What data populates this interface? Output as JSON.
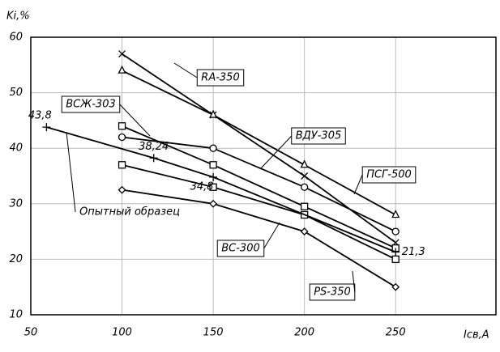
{
  "chart_data": {
    "type": "line",
    "y_label": "Ki,%",
    "x_label": "Iсв,A",
    "xlim": [
      50,
      305
    ],
    "ylim": [
      10,
      60
    ],
    "xticks": [
      50,
      100,
      150,
      200,
      250
    ],
    "yticks": [
      10,
      20,
      30,
      40,
      50,
      60
    ],
    "grid": true,
    "series": [
      {
        "name": "RA-350",
        "color": "#000000",
        "marker": "x",
        "x": [
          100,
          150,
          200,
          250
        ],
        "values": [
          57,
          46,
          35,
          23
        ]
      },
      {
        "name": "ПСГ-500",
        "color": "#000000",
        "marker": "triangle",
        "x": [
          100,
          150,
          200,
          250
        ],
        "values": [
          54,
          46,
          37,
          28
        ]
      },
      {
        "name": "ВСЖ-303",
        "color": "#000000",
        "marker": "square",
        "x": [
          100,
          150,
          200,
          250
        ],
        "values": [
          44,
          37,
          29.5,
          22
        ]
      },
      {
        "name": "ВДУ-305",
        "color": "#000000",
        "marker": "circle",
        "x": [
          100,
          150,
          200,
          250
        ],
        "values": [
          42,
          40,
          33,
          25
        ]
      },
      {
        "name": "ВС-300",
        "color": "#000000",
        "marker": "square",
        "x": [
          100,
          150,
          200,
          250
        ],
        "values": [
          37,
          33,
          28,
          20
        ]
      },
      {
        "name": "PS-350",
        "color": "#000000",
        "marker": "diamond",
        "x": [
          100,
          150,
          200,
          250
        ],
        "values": [
          32.5,
          30,
          25,
          15
        ]
      },
      {
        "name": "Опытный образец",
        "color": "#000000",
        "marker": "plus",
        "x": [
          58.6,
          117.4,
          150,
          250
        ],
        "values": [
          43.8,
          38.24,
          34.8,
          21.3
        ],
        "value_labels": [
          "43,8",
          "38,24",
          "34,8",
          "21,3"
        ]
      }
    ]
  }
}
